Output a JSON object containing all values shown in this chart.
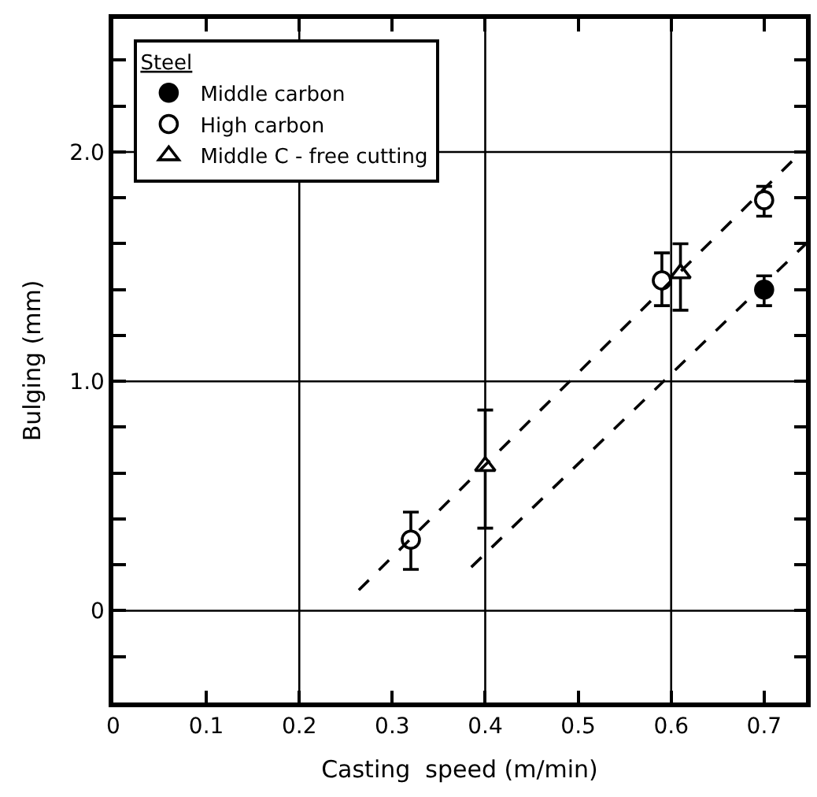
{
  "chart_data": {
    "type": "scatter",
    "xlabel": "Casting  speed (m/min)",
    "ylabel": "Bulging (mm)",
    "legend_title": "Steel",
    "xlim": [
      0,
      0.745
    ],
    "ylim": [
      -0.4,
      2.58
    ],
    "xticks": [
      0,
      0.1,
      0.2,
      0.3,
      0.4,
      0.5,
      0.6,
      0.7
    ],
    "yticks": [
      {
        "value": -0.2,
        "label": null
      },
      0,
      {
        "value": 0.2,
        "label": null
      },
      {
        "value": 0.4,
        "label": null
      },
      {
        "value": 0.6,
        "label": null
      },
      {
        "value": 0.8,
        "label": null
      },
      {
        "value": 1.0,
        "label": "1.0"
      },
      {
        "value": 1.2,
        "label": null
      },
      {
        "value": 1.4,
        "label": null
      },
      {
        "value": 1.6,
        "label": null
      },
      {
        "value": 1.8,
        "label": null
      },
      {
        "value": 2.0,
        "label": "2.0"
      },
      {
        "value": 2.2,
        "label": null
      },
      {
        "value": 2.4,
        "label": null
      }
    ],
    "grid": false,
    "legend": "top left",
    "series": [
      {
        "name": "Middle carbon",
        "color": "#000000",
        "marker": "circle",
        "x": [
          0.7
        ],
        "values": [
          1.4
        ],
        "errors": [
          [
            1.33,
            1.46
          ]
        ]
      },
      {
        "name": "High carbon",
        "color": "#ffffff",
        "marker": "circle",
        "x": [
          0.32,
          0.59,
          0.7
        ],
        "values": [
          0.31,
          1.44,
          1.79
        ],
        "errors": [
          [
            0.18,
            0.43
          ],
          [
            1.33,
            1.56
          ],
          [
            1.72,
            1.85
          ]
        ]
      },
      {
        "name": "Middle C - free cutting",
        "color": "#ffffff",
        "marker": "triangle",
        "x": [
          0.4,
          0.61
        ],
        "values": [
          0.63,
          1.47
        ],
        "errors": [
          [
            0.36,
            0.875
          ],
          [
            1.31,
            1.6
          ]
        ]
      },
      {
        "type": "line",
        "color": "#000000",
        "line_style": "dashed",
        "marker": "none",
        "x": [
          0.264,
          0.74
        ],
        "values": [
          0.09,
          2.0
        ]
      },
      {
        "type": "line",
        "color": "#000000",
        "line_style": "dashed",
        "marker": "none",
        "x": [
          0.385,
          0.745
        ],
        "values": [
          0.19,
          1.6
        ]
      }
    ],
    "ref_lines": [
      {
        "axis": "x",
        "value": 0.2,
        "color": "#000000"
      },
      {
        "axis": "x",
        "value": 0.4,
        "color": "#000000"
      },
      {
        "axis": "x",
        "value": 0.6,
        "color": "#000000"
      },
      {
        "axis": "y",
        "value": 0,
        "color": "#000000"
      },
      {
        "axis": "y",
        "value": 1.0,
        "color": "#000000"
      },
      {
        "axis": "y",
        "value": 2.0,
        "color": "#000000"
      }
    ]
  }
}
